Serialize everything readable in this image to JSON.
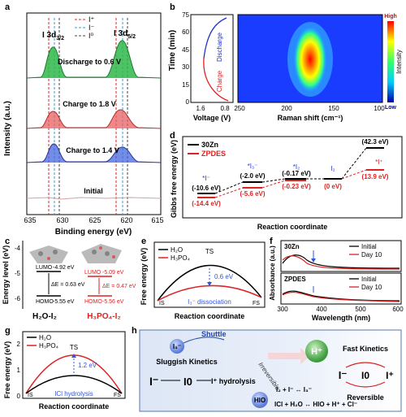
{
  "panel_labels": [
    "a",
    "b",
    "c",
    "d",
    "e",
    "f",
    "g",
    "h"
  ],
  "a": {
    "ylabel": "Intensity (a.u.)",
    "xlabel": "Binding energy (eV)",
    "xticks": [
      "635",
      "630",
      "625",
      "620",
      "615"
    ],
    "peak_left": "I 3d",
    "peak_left_sub": "3/2",
    "peak_right": "I 3d",
    "peak_right_sub": "5/2",
    "legend": [
      "I⁺",
      "I⁻",
      "I⁰"
    ],
    "traces": [
      "Discharge to 0.6 V",
      "Charge to 1.8 V",
      "Charge to 1.4 V",
      "Initial"
    ],
    "colors": {
      "discharge": "#22b14c",
      "charge18": "#e05555",
      "charge14": "#4455dd",
      "initial": "#d8a0a0",
      "iplus": "#e02020",
      "iminus": "#3399dd",
      "izero": "#444444"
    }
  },
  "b": {
    "ylabel": "Time (min)",
    "yticks": [
      "0",
      "15",
      "30",
      "45",
      "60",
      "75"
    ],
    "xlabel_left": "Voltage (V)",
    "xticks_left": [
      "1.6",
      "0.8"
    ],
    "discharge": "Discharge",
    "charge": "Charge",
    "xlabel_right": "Raman shift (cm⁻¹)",
    "xticks_right": [
      "250",
      "200",
      "150",
      "100"
    ],
    "colorbar_high": "High",
    "colorbar_low": "Low",
    "colorbar_label": "Intensity"
  },
  "c": {
    "ylabel": "Energy level (eV)",
    "yticks": [
      "-4",
      "-5",
      "-6"
    ],
    "h2o": {
      "lumo": "LUMO",
      "lumo_val": "-4.92 eV",
      "homo": "HOMO",
      "homo_val": "-5.55 eV",
      "gap": "ΔE = 0.63 eV",
      "label": "H₂O-I₂"
    },
    "h3po4": {
      "lumo": "LUMO",
      "lumo_val": "-5.09 eV",
      "homo": "HOMO",
      "homo_val": "-5.56 eV",
      "gap": "ΔE = 0.47 eV",
      "label": "H₃PO₄-I₂"
    }
  },
  "d": {
    "ylabel": "Gibbs free energy (eV)",
    "xlabel": "Reaction coordinate",
    "legend": [
      "30Zn",
      "ZPDES"
    ],
    "species": [
      "*I⁻",
      "*I₃⁻",
      "*I₂",
      "I₂",
      "*I⁺"
    ],
    "values_30zn": [
      "(-10.6 eV)",
      "(-2.0 eV)",
      "(-0.17 eV)",
      "(42.3 eV)"
    ],
    "values_zpdes": [
      "(-14.4 eV)",
      "(-5.6 eV)",
      "(-0.23 eV)",
      "(0 eV)",
      "(13.9 eV)"
    ]
  },
  "e": {
    "ylabel": "Free energy (eV)",
    "xlabel": "Reaction coordinate",
    "legend": [
      "H₂O",
      "H₃PO₄"
    ],
    "ts": "TS",
    "diff": "0.6 eV",
    "process": "I₃⁻ dissociation",
    "is": "IS",
    "fs": "FS"
  },
  "f": {
    "ylabel": "Absorbance (a.u.)",
    "xlabel": "Wavelength (nm)",
    "xticks": [
      "300",
      "400",
      "500",
      "600"
    ],
    "top_title": "30Zn",
    "bottom_title": "ZPDES",
    "legend": [
      "Initial",
      "Day 10"
    ]
  },
  "g": {
    "ylabel": "Free energy (eV)",
    "xlabel": "Reaction coordinate",
    "yticks": [
      "0",
      "1",
      "2"
    ],
    "legend": [
      "H₂O",
      "H₃PO₄"
    ],
    "ts": "TS",
    "diff": "1.2 eV",
    "process": "ICl hydrolysis",
    "is": "IS",
    "fs": "FS"
  },
  "h": {
    "shuttle": "Shuttle",
    "i3": "I₃⁻",
    "sluggish": "Sluggish Kinetics",
    "irreversible": "Irreversible",
    "iminus": "I⁻",
    "izero": "I0",
    "iplus_hydro": "I⁺ hydrolysis",
    "hio": "HIO",
    "eq1": "I₂ + I⁻ ↔ I₃⁻",
    "eq2": "ICl + H₂O ↔ HIO + H⁺ + Cl⁻",
    "hplus": "H⁺",
    "fast": "Fast Kinetics",
    "r_iminus": "I⁻",
    "r_izero": "I0",
    "r_iplus": "I⁺",
    "reversible": "Reversible"
  }
}
